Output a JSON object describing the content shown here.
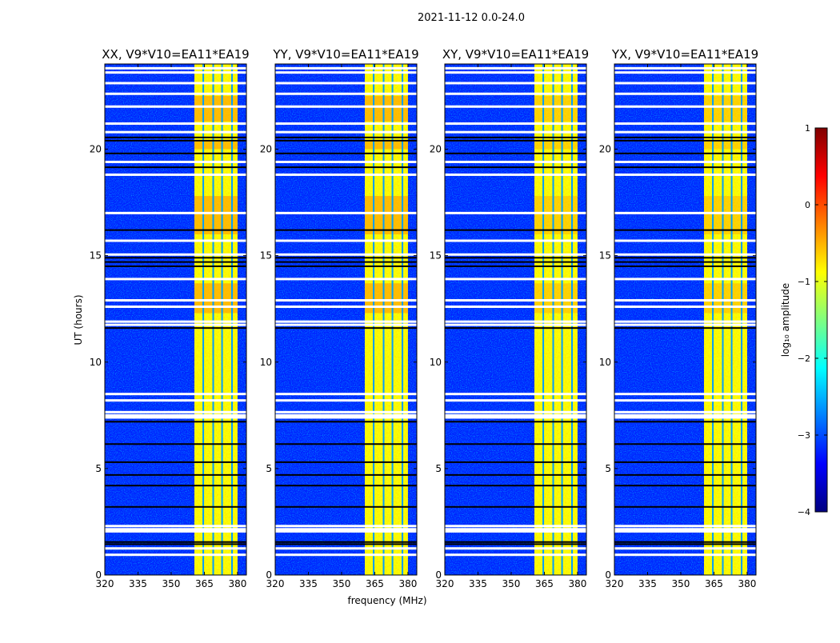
{
  "chart_data": {
    "type": "heatmap",
    "suptitle": "2021-11-12 0.0-24.0",
    "xlabel": "frequency (MHz)",
    "ylabel": "UT (hours)",
    "xlim": [
      320,
      384
    ],
    "ylim": [
      0,
      24
    ],
    "xticks": [
      320,
      335,
      350,
      365,
      380
    ],
    "xtick_labels": [
      "320",
      "335",
      "350",
      "365",
      "380"
    ],
    "yticks": [
      0,
      5,
      10,
      15,
      20
    ],
    "ytick_labels": [
      "0",
      "5",
      "10",
      "15",
      "20"
    ],
    "colorbar": {
      "label": "log₁₀ amplitude",
      "range": [
        -4,
        1
      ],
      "ticks": [
        -4,
        -3,
        -2,
        -1,
        0,
        1
      ],
      "tick_labels": [
        "−4",
        "−3",
        "−2",
        "−1",
        "0",
        "1"
      ],
      "colormap": "jet"
    },
    "background_log_amplitude": -3.2,
    "rfi_band_mhz": [
      360.5,
      380
    ],
    "rfi_band_log_amplitude": -0.9,
    "rfi_channel_gaps_mhz": [
      364.5,
      369,
      373,
      377.5
    ],
    "flagged_white_hours": [
      0.95,
      1.25,
      2.05,
      2.15,
      2.3,
      7.4,
      7.5,
      7.65,
      8.2,
      8.5,
      11.75,
      11.9,
      12.6,
      12.9,
      13.9,
      15.05,
      15.7,
      17.0,
      18.8,
      19.4,
      20.8,
      21.2,
      22.0,
      22.6,
      23.1,
      23.6,
      23.8
    ],
    "flagged_black_hours": [
      1.45,
      1.55,
      3.2,
      4.2,
      4.7,
      5.3,
      6.15,
      7.2,
      11.6,
      14.5,
      14.7,
      14.9,
      16.2,
      19.15,
      19.8,
      20.4,
      20.55
    ],
    "strong_rfi_hours": [
      [
        12.3,
        13.7
      ],
      [
        16.0,
        17.8
      ],
      [
        20.0,
        20.4
      ],
      [
        21.3,
        22.5
      ]
    ],
    "panels": [
      {
        "title": "XX, V9*V10=EA11*EA19"
      },
      {
        "title": "YY, V9*V10=EA11*EA19"
      },
      {
        "title": "XY, V9*V10=EA11*EA19"
      },
      {
        "title": "YX, V9*V10=EA11*EA19"
      }
    ]
  }
}
